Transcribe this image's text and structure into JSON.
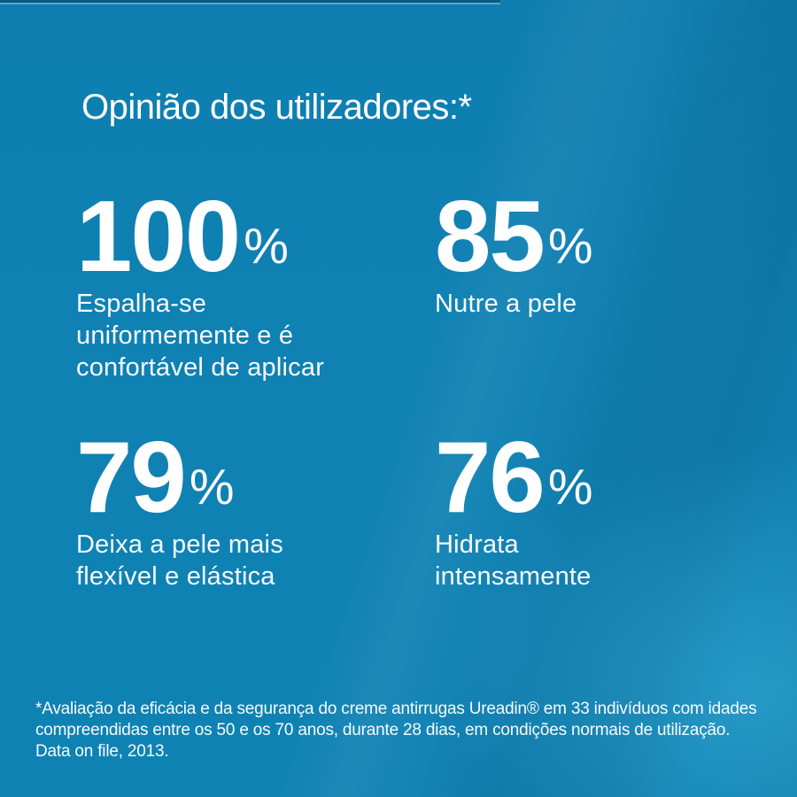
{
  "header": {
    "title": "Opinião dos utilizadores:*"
  },
  "theme": {
    "background_base": "#0F81B3",
    "background_accent_cyan": "#54CEF6",
    "background_shadow": "#0A6E9C",
    "text_color": "#FFFFFF"
  },
  "stats": [
    {
      "value": "100",
      "unit": "%",
      "label": "Espalha-se uniformemente e é confortável de aplicar",
      "lines": [
        "Espalha-se",
        "uniformemente e é",
        "confortável de aplicar"
      ]
    },
    {
      "value": "85",
      "unit": "%",
      "label": "Nutre a pele",
      "lines": [
        "Nutre a pele"
      ]
    },
    {
      "value": "79",
      "unit": "%",
      "label": "Deixa a pele mais flexível e elástica",
      "lines": [
        "Deixa a pele mais",
        "flexível e elástica"
      ]
    },
    {
      "value": "76",
      "unit": "%",
      "label": "Hidrata intensamente",
      "lines": [
        "Hidrata",
        "intensamente"
      ]
    }
  ],
  "footnote": {
    "lines": [
      "*Avaliação da eficácia e da segurança do creme antirrugas Ureadin® em 33 indivíduos com idades",
      "compreendidas entre os 50 e os 70 anos, durante 28 dias, em condições normais de utilização.",
      "Data on file, 2013."
    ]
  }
}
